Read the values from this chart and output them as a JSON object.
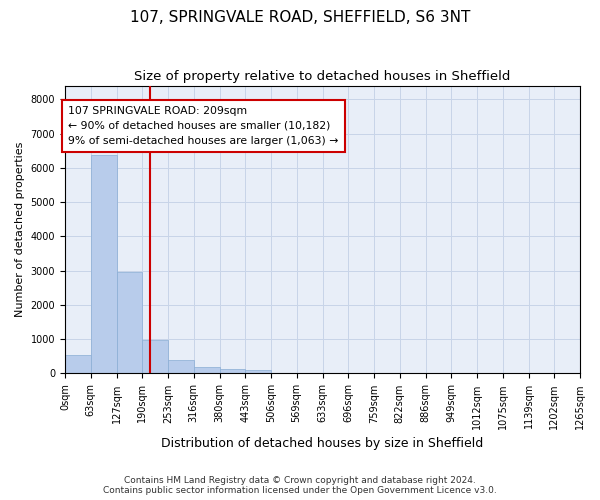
{
  "title1": "107, SPRINGVALE ROAD, SHEFFIELD, S6 3NT",
  "title2": "Size of property relative to detached houses in Sheffield",
  "xlabel": "Distribution of detached houses by size in Sheffield",
  "ylabel": "Number of detached properties",
  "footer1": "Contains HM Land Registry data © Crown copyright and database right 2024.",
  "footer2": "Contains public sector information licensed under the Open Government Licence v3.0.",
  "annotation_line1": "107 SPRINGVALE ROAD: 209sqm",
  "annotation_line2": "← 90% of detached houses are smaller (10,182)",
  "annotation_line3": "9% of semi-detached houses are larger (1,063) →",
  "property_size": 209,
  "bin_edges": [
    0,
    63,
    127,
    190,
    253,
    316,
    380,
    443,
    506,
    569,
    633,
    696,
    759,
    822,
    886,
    949,
    1012,
    1075,
    1139,
    1202,
    1265
  ],
  "bar_heights": [
    550,
    6380,
    2950,
    980,
    390,
    180,
    120,
    100,
    0,
    0,
    0,
    0,
    0,
    0,
    0,
    0,
    0,
    0,
    0,
    0
  ],
  "bar_color": "#b8cceb",
  "bar_edgecolor": "#8aadd4",
  "vline_color": "#cc0000",
  "grid_color": "#c8d4e8",
  "bg_color": "#e8eef8",
  "ylim": [
    0,
    8400
  ],
  "yticks": [
    0,
    1000,
    2000,
    3000,
    4000,
    5000,
    6000,
    7000,
    8000
  ],
  "annotation_box_edgecolor": "#cc0000",
  "title1_fontsize": 11,
  "title2_fontsize": 9.5,
  "ylabel_fontsize": 8,
  "xlabel_fontsize": 9,
  "tick_fontsize": 7,
  "footer_fontsize": 6.5
}
